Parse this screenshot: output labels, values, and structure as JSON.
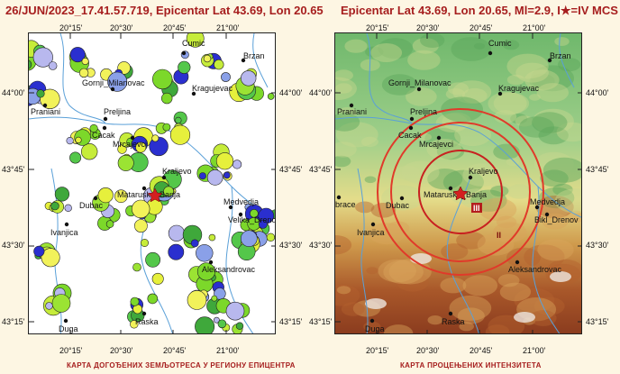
{
  "left_panel": {
    "title": "26/JUN/2023_17.41.57.719, Epicentar Lat 43.69, Lon 20.65",
    "footer": "КАРТА ДОГОЂЕНИХ ЗЕМЉОТРЕСА У РЕГИОНУ ЕПИЦЕНТРА"
  },
  "right_panel": {
    "title": "Epicentar Lat 43.69, Lon 20.65, Ml=2.9, I★=IV MCS",
    "footer": "КАРТА ПРОЦЕЊЕНИХ ИНТЕНЗИТЕТА",
    "intensity_labels": [
      "III",
      "II"
    ]
  },
  "axes": {
    "lon_ticks": [
      "20°15'",
      "20°30'",
      "20°45'",
      "21°00'"
    ],
    "lat_ticks": [
      "44°00'",
      "43°45'",
      "43°30'",
      "43°15'"
    ]
  },
  "towns": [
    "Cumic",
    "Brzan",
    "Praniani",
    "Gornji_Milanovac",
    "Kragujevac",
    "Preljina",
    "Cacak",
    "Mrcajevci",
    "Kraljevo",
    "Mataruska_Banja",
    "Dubac",
    "Ivanjica",
    "Medvedja",
    "Velika_Drenova",
    "Aleksandrovac",
    "Raska",
    "Duga"
  ],
  "right_towns": [
    "Cumic",
    "Brzan",
    "Praniani",
    "Gornji_Milanovac",
    "Kragujevac",
    "Preljina",
    "Cacak",
    "Mrcajevci",
    "Kraljevo",
    "Mataruska_Banja",
    "Dubac",
    "Ivanjica",
    "Medvedja",
    "Bikl_Drenov",
    "Aleksandrovac",
    "Raska",
    "Duga",
    "brace"
  ],
  "colors": {
    "title": "#a61e1e",
    "epicenter": "#d42020",
    "circle": "#e03a2a"
  }
}
